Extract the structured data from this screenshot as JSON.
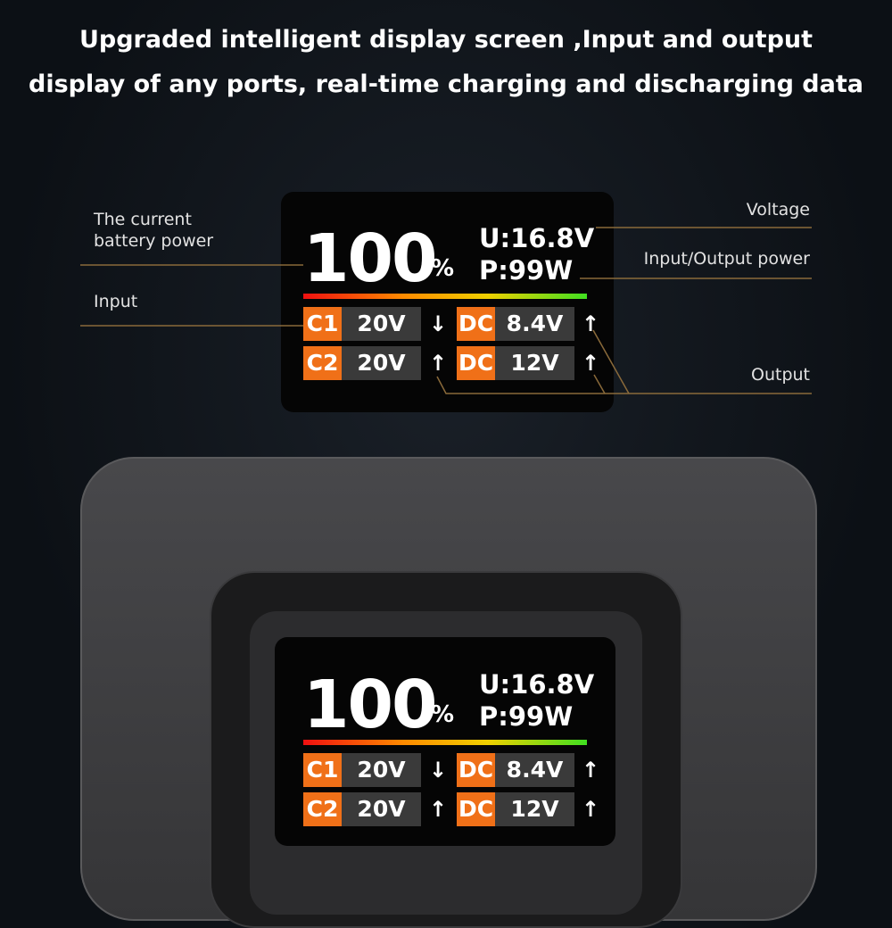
{
  "headline": {
    "line1": "Upgraded intelligent display screen ,Input and output",
    "line2": "display of any ports, real-time charging and discharging data"
  },
  "callouts": {
    "battery": "The current battery power",
    "input": "Input",
    "voltage": "Voltage",
    "power": "Input/Output power",
    "output": "Output"
  },
  "display": {
    "battery_percent": "100",
    "percent_sign": "%",
    "voltage": "U:16.8V",
    "power": "P:99W",
    "ports": [
      {
        "tag": "C1",
        "value": "20V",
        "arrow": "↓"
      },
      {
        "tag": "DC",
        "value": "8.4V",
        "arrow": "↑"
      },
      {
        "tag": "C2",
        "value": "20V",
        "arrow": "↑"
      },
      {
        "tag": "DC",
        "value": "12V",
        "arrow": "↑"
      }
    ]
  },
  "colors": {
    "port_tag": "#f07018",
    "leader_line": "#8a6a3a",
    "bar_gradient": [
      "#f01010",
      "#ff8a00",
      "#f0d000",
      "#40e020"
    ]
  }
}
